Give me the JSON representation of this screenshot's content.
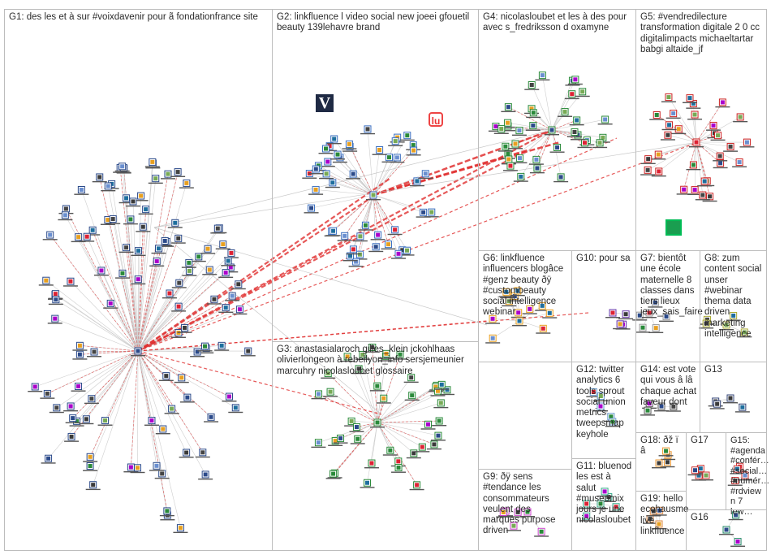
{
  "groups": [
    {
      "id": "G1",
      "label": "G1: des les et à sur #voixdavenir pour ã fondationfrance site"
    },
    {
      "id": "G2",
      "label": "G2: linkfluence l video social new joeei gfouetil beauty 139lehavre brand"
    },
    {
      "id": "G3",
      "label": "G3: anastasialaroch gilles_klein jckohlhaas olivierlongeon à rebellyon_info sersjemeunier marcuhry nicolasloubet glossaire"
    },
    {
      "id": "G4",
      "label": "G4: nicolasloubet et les à des pour avec s_fredriksson d oxamyne"
    },
    {
      "id": "G5",
      "label": "G5: #vendredilecture transformation digitale 2 0 cc digitalimpacts michaeltartar babgi altaide_jf"
    },
    {
      "id": "G6",
      "label": "G6: linkfluence influencers blogâce #genz beauty ðÿ #custombeauty social intelligence webinar"
    },
    {
      "id": "G7",
      "label": "G7: bientôt une école maternelle 8 classes dans tiers lieux jeux_sais_faire"
    },
    {
      "id": "G8",
      "label": "G8: zum content social unser #webinar thema data driven marketing intelligence"
    },
    {
      "id": "G9",
      "label": "G9: ðÿ sens #tendance les consommateurs veulent des marques purpose driven"
    },
    {
      "id": "G10",
      "label": "G10: pour sa"
    },
    {
      "id": "G11",
      "label": "G11: bluenod les est à salut #museomix jours je une nicolasloubet"
    },
    {
      "id": "G12",
      "label": "G12: twitter analytics 6 tools sprout social union metrics tweepsmap keyhole"
    },
    {
      "id": "G13",
      "label": "G13"
    },
    {
      "id": "G14",
      "label": "G14: est vote qui vous â lâ chaque achat faveur dont"
    },
    {
      "id": "G15",
      "label": "G15: #agenda #confér… #social… #numér… #rdview n 7 lew…"
    },
    {
      "id": "G16",
      "label": "G16"
    },
    {
      "id": "G17",
      "label": "G17"
    },
    {
      "id": "G18",
      "label": "G18: ðž ï â"
    },
    {
      "id": "G19",
      "label": "G19: hello ecohausme live linkfluence"
    }
  ],
  "logos": {
    "v": "V",
    "r": "lu"
  },
  "colors": {
    "edge": "#c9c9c9",
    "edge_strong": "#e03030",
    "border": "#bdbdbd"
  }
}
